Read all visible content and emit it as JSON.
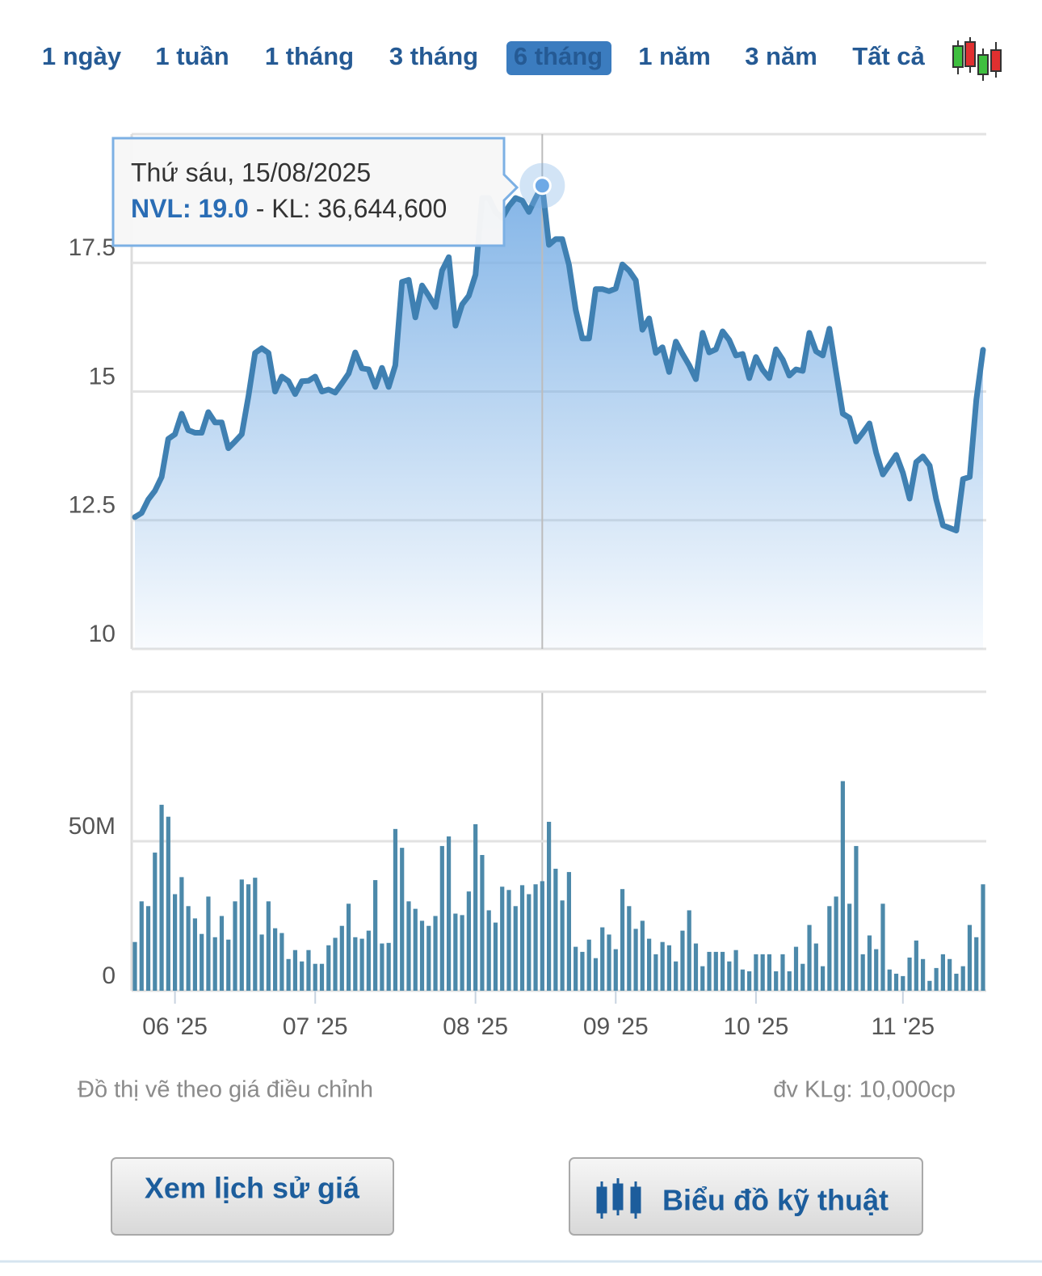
{
  "tabs": [
    {
      "label": "1 ngày"
    },
    {
      "label": "1 tuần"
    },
    {
      "label": "1 tháng"
    },
    {
      "label": "3 tháng"
    },
    {
      "label": "6 tháng",
      "active": true
    },
    {
      "label": "1 năm"
    },
    {
      "label": "3 năm"
    },
    {
      "label": "Tất cả"
    }
  ],
  "tooltip": {
    "date": "Thứ sáu, 15/08/2025",
    "price_label": "NVL: 19.0",
    "volume_label": " - KL: 36,644,600"
  },
  "notes": {
    "left": "Đồ thị vẽ theo giá điều chỉnh",
    "right": "đv KLg: 10,000cp"
  },
  "buttons": [
    "Xem lịch sử giá",
    "Biểu đồ kỹ thuật"
  ],
  "chart_data": [
    {
      "type": "area",
      "color": "#3f80b2",
      "ylim": [
        10,
        20
      ],
      "yticks": [
        10,
        12.5,
        15,
        17.5
      ],
      "grid": true,
      "values": [
        12.56,
        12.64,
        12.9,
        13.07,
        13.34,
        14.08,
        14.17,
        14.57,
        14.25,
        14.2,
        14.2,
        14.6,
        14.4,
        14.4,
        13.9,
        14.03,
        14.17,
        14.91,
        15.75,
        15.84,
        15.75,
        15.0,
        15.29,
        15.2,
        14.95,
        15.2,
        15.21,
        15.29,
        15.0,
        15.04,
        14.98,
        15.16,
        15.35,
        15.76,
        15.45,
        15.43,
        15.09,
        15.46,
        15.09,
        15.51,
        17.13,
        17.17,
        16.44,
        17.06,
        16.86,
        16.64,
        17.35,
        17.61,
        16.28,
        16.69,
        16.86,
        17.27,
        18.76,
        18.76,
        18.49,
        18.37,
        18.6,
        18.76,
        18.71,
        18.49,
        18.76,
        19.0,
        17.85,
        17.96,
        17.96,
        17.46,
        16.59,
        16.03,
        16.03,
        16.99,
        16.99,
        16.95,
        17.0,
        17.47,
        17.35,
        17.16,
        16.2,
        16.42,
        15.75,
        15.86,
        15.38,
        15.97,
        15.73,
        15.51,
        15.24,
        16.14,
        15.76,
        15.82,
        16.17,
        16.0,
        15.7,
        15.73,
        15.26,
        15.67,
        15.42,
        15.26,
        15.82,
        15.62,
        15.31,
        15.43,
        15.4,
        16.14,
        15.78,
        15.7,
        16.22,
        15.38,
        14.57,
        14.49,
        14.03,
        14.2,
        14.38,
        13.81,
        13.39,
        13.58,
        13.77,
        13.42,
        12.92,
        13.63,
        13.74,
        13.56,
        12.9,
        12.4,
        12.35,
        12.3,
        13.3,
        13.34,
        14.84,
        15.81
      ],
      "highlight": 61
    },
    {
      "type": "bar",
      "color": "#4c89aa",
      "ylim": [
        0,
        100000000
      ],
      "yticks": [
        0,
        {
          "value": 50000000,
          "label": "50M"
        }
      ],
      "grid": true,
      "categories": [
        null,
        null,
        null,
        null,
        null,
        null,
        "06 '25",
        null,
        null,
        null,
        null,
        null,
        null,
        null,
        null,
        null,
        null,
        null,
        null,
        null,
        null,
        null,
        null,
        null,
        null,
        null,
        null,
        "07 '25",
        null,
        null,
        null,
        null,
        null,
        null,
        null,
        null,
        null,
        null,
        null,
        null,
        null,
        null,
        null,
        null,
        null,
        null,
        null,
        null,
        null,
        null,
        null,
        "08 '25",
        null,
        null,
        null,
        null,
        null,
        null,
        null,
        null,
        null,
        null,
        null,
        null,
        null,
        null,
        null,
        null,
        null,
        null,
        null,
        null,
        "09 '25",
        null,
        null,
        null,
        null,
        null,
        null,
        null,
        null,
        null,
        null,
        null,
        null,
        null,
        null,
        null,
        null,
        null,
        null,
        null,
        null,
        "10 '25",
        null,
        null,
        null,
        null,
        null,
        null,
        null,
        null,
        null,
        null,
        null,
        null,
        null,
        null,
        null,
        null,
        null,
        null,
        null,
        null,
        null,
        "11 '25",
        null,
        null,
        null,
        null,
        null,
        null,
        null,
        null,
        null,
        null,
        null,
        null
      ],
      "values": [
        16300000,
        29900000,
        28300000,
        46200000,
        62200000,
        58200000,
        32300000,
        38000000,
        28300000,
        24200000,
        19000000,
        31500000,
        17900000,
        25000000,
        17100000,
        29900000,
        37200000,
        35600000,
        37800000,
        18800000,
        29900000,
        20900000,
        19300000,
        10600000,
        13600000,
        9800000,
        13600000,
        9000000,
        9000000,
        15200000,
        17700000,
        21700000,
        29100000,
        17900000,
        17400000,
        20100000,
        37000000,
        15800000,
        16000000,
        54100000,
        47800000,
        29900000,
        27400000,
        23400000,
        21700000,
        25000000,
        48400000,
        51600000,
        25800000,
        25300000,
        33200000,
        55700000,
        45400000,
        26900000,
        22800000,
        34800000,
        33700000,
        28300000,
        35300000,
        32300000,
        35600000,
        36644600,
        56500000,
        40800000,
        30200000,
        39700000,
        14700000,
        13000000,
        17100000,
        10900000,
        21200000,
        18800000,
        13900000,
        34000000,
        28300000,
        20700000,
        23400000,
        17400000,
        12200000,
        16300000,
        15200000,
        9800000,
        20100000,
        26900000,
        15800000,
        8200000,
        13000000,
        13000000,
        13000000,
        9800000,
        13600000,
        7100000,
        6500000,
        12200000,
        12200000,
        12200000,
        6500000,
        12200000,
        6500000,
        14700000,
        9000000,
        22000000,
        15800000,
        8200000,
        28300000,
        31500000,
        70100000,
        29100000,
        48400000,
        12200000,
        18500000,
        13900000,
        29100000,
        7100000,
        5700000,
        4900000,
        11100000,
        16800000,
        10600000,
        3300000,
        7600000,
        12200000,
        10600000,
        5700000,
        8200000,
        22000000,
        17900000,
        35600000
      ]
    }
  ]
}
